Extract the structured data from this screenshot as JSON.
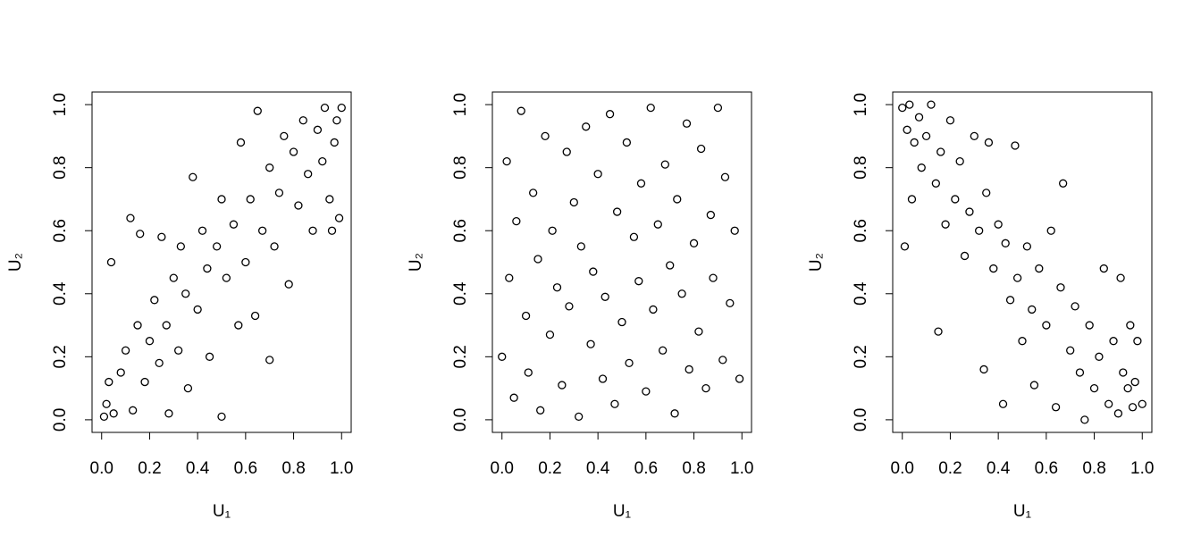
{
  "chart_data": [
    {
      "type": "scatter",
      "xlabel": "U₁",
      "ylabel": "U₂",
      "color": "#000000",
      "xlim": [
        -0.04,
        1.04
      ],
      "ylim": [
        -0.04,
        1.04
      ],
      "xticks": [
        {
          "value": 0,
          "label": "0.0"
        },
        {
          "value": 0.2,
          "label": "0.2"
        },
        {
          "value": 0.4,
          "label": "0.4"
        },
        {
          "value": 0.6,
          "label": "0.6"
        },
        {
          "value": 0.8,
          "label": "0.8"
        },
        {
          "value": 1,
          "label": "1.0"
        }
      ],
      "yticks": [
        {
          "value": 0,
          "label": "0.0"
        },
        {
          "value": 0.2,
          "label": "0.2"
        },
        {
          "value": 0.4,
          "label": "0.4"
        },
        {
          "value": 0.6,
          "label": "0.6"
        },
        {
          "value": 0.8,
          "label": "0.8"
        },
        {
          "value": 1,
          "label": "1.0"
        }
      ],
      "x": [
        0.01,
        0.02,
        0.03,
        0.05,
        0.04,
        0.08,
        0.1,
        0.12,
        0.13,
        0.15,
        0.16,
        0.18,
        0.2,
        0.22,
        0.24,
        0.25,
        0.27,
        0.28,
        0.3,
        0.32,
        0.33,
        0.35,
        0.36,
        0.38,
        0.4,
        0.42,
        0.44,
        0.45,
        0.48,
        0.5,
        0.5,
        0.52,
        0.55,
        0.57,
        0.58,
        0.6,
        0.62,
        0.64,
        0.65,
        0.67,
        0.7,
        0.7,
        0.72,
        0.74,
        0.76,
        0.78,
        0.8,
        0.82,
        0.84,
        0.86,
        0.88,
        0.9,
        0.92,
        0.93,
        0.95,
        0.96,
        0.97,
        0.98,
        0.99,
        1.0
      ],
      "y": [
        0.01,
        0.05,
        0.12,
        0.02,
        0.5,
        0.15,
        0.22,
        0.64,
        0.03,
        0.3,
        0.59,
        0.12,
        0.25,
        0.38,
        0.18,
        0.58,
        0.3,
        0.02,
        0.45,
        0.22,
        0.55,
        0.4,
        0.1,
        0.77,
        0.35,
        0.6,
        0.48,
        0.2,
        0.55,
        0.01,
        0.7,
        0.45,
        0.62,
        0.3,
        0.88,
        0.5,
        0.7,
        0.33,
        0.98,
        0.6,
        0.19,
        0.8,
        0.55,
        0.72,
        0.9,
        0.43,
        0.85,
        0.68,
        0.95,
        0.78,
        0.6,
        0.92,
        0.82,
        0.99,
        0.7,
        0.6,
        0.88,
        0.95,
        0.64,
        0.99
      ]
    },
    {
      "type": "scatter",
      "xlabel": "U₁",
      "ylabel": "U₂",
      "color": "#000000",
      "xlim": [
        -0.04,
        1.04
      ],
      "ylim": [
        -0.04,
        1.04
      ],
      "xticks": [
        {
          "value": 0,
          "label": "0.0"
        },
        {
          "value": 0.2,
          "label": "0.2"
        },
        {
          "value": 0.4,
          "label": "0.4"
        },
        {
          "value": 0.6,
          "label": "0.6"
        },
        {
          "value": 0.8,
          "label": "0.8"
        },
        {
          "value": 1,
          "label": "1.0"
        }
      ],
      "yticks": [
        {
          "value": 0,
          "label": "0.0"
        },
        {
          "value": 0.2,
          "label": "0.2"
        },
        {
          "value": 0.4,
          "label": "0.4"
        },
        {
          "value": 0.6,
          "label": "0.6"
        },
        {
          "value": 0.8,
          "label": "0.8"
        },
        {
          "value": 1,
          "label": "1.0"
        }
      ],
      "x": [
        0.0,
        0.02,
        0.03,
        0.05,
        0.06,
        0.08,
        0.1,
        0.11,
        0.13,
        0.15,
        0.16,
        0.18,
        0.2,
        0.21,
        0.23,
        0.25,
        0.27,
        0.28,
        0.3,
        0.32,
        0.33,
        0.35,
        0.37,
        0.38,
        0.4,
        0.42,
        0.43,
        0.45,
        0.47,
        0.48,
        0.5,
        0.52,
        0.53,
        0.55,
        0.57,
        0.58,
        0.6,
        0.62,
        0.63,
        0.65,
        0.67,
        0.68,
        0.7,
        0.72,
        0.73,
        0.75,
        0.77,
        0.78,
        0.8,
        0.82,
        0.83,
        0.85,
        0.87,
        0.88,
        0.9,
        0.92,
        0.93,
        0.95,
        0.97,
        0.99
      ],
      "y": [
        0.2,
        0.82,
        0.45,
        0.07,
        0.63,
        0.98,
        0.33,
        0.15,
        0.72,
        0.51,
        0.03,
        0.9,
        0.27,
        0.6,
        0.42,
        0.11,
        0.85,
        0.36,
        0.69,
        0.01,
        0.55,
        0.93,
        0.24,
        0.47,
        0.78,
        0.13,
        0.39,
        0.97,
        0.05,
        0.66,
        0.31,
        0.88,
        0.18,
        0.58,
        0.44,
        0.75,
        0.09,
        0.99,
        0.35,
        0.62,
        0.22,
        0.81,
        0.49,
        0.02,
        0.7,
        0.4,
        0.94,
        0.16,
        0.56,
        0.28,
        0.86,
        0.1,
        0.65,
        0.45,
        0.99,
        0.19,
        0.77,
        0.37,
        0.6,
        0.13
      ]
    },
    {
      "type": "scatter",
      "xlabel": "U₁",
      "ylabel": "U₂",
      "color": "#000000",
      "xlim": [
        -0.04,
        1.04
      ],
      "ylim": [
        -0.04,
        1.04
      ],
      "xticks": [
        {
          "value": 0,
          "label": "0.0"
        },
        {
          "value": 0.2,
          "label": "0.2"
        },
        {
          "value": 0.4,
          "label": "0.4"
        },
        {
          "value": 0.6,
          "label": "0.6"
        },
        {
          "value": 0.8,
          "label": "0.8"
        },
        {
          "value": 1,
          "label": "1.0"
        }
      ],
      "yticks": [
        {
          "value": 0,
          "label": "0.0"
        },
        {
          "value": 0.2,
          "label": "0.2"
        },
        {
          "value": 0.4,
          "label": "0.4"
        },
        {
          "value": 0.6,
          "label": "0.6"
        },
        {
          "value": 0.8,
          "label": "0.8"
        },
        {
          "value": 1,
          "label": "1.0"
        }
      ],
      "x": [
        0.0,
        0.01,
        0.02,
        0.03,
        0.04,
        0.05,
        0.07,
        0.08,
        0.1,
        0.12,
        0.14,
        0.15,
        0.16,
        0.18,
        0.2,
        0.22,
        0.24,
        0.26,
        0.28,
        0.3,
        0.32,
        0.34,
        0.35,
        0.36,
        0.38,
        0.4,
        0.42,
        0.43,
        0.45,
        0.47,
        0.48,
        0.5,
        0.52,
        0.54,
        0.55,
        0.57,
        0.6,
        0.62,
        0.64,
        0.66,
        0.67,
        0.7,
        0.72,
        0.74,
        0.76,
        0.78,
        0.8,
        0.82,
        0.84,
        0.86,
        0.88,
        0.9,
        0.91,
        0.92,
        0.94,
        0.95,
        0.96,
        0.97,
        0.98,
        1.0
      ],
      "y": [
        0.99,
        0.55,
        0.92,
        1.0,
        0.7,
        0.88,
        0.96,
        0.8,
        0.9,
        1.0,
        0.75,
        0.28,
        0.85,
        0.62,
        0.95,
        0.7,
        0.82,
        0.52,
        0.66,
        0.9,
        0.6,
        0.16,
        0.72,
        0.88,
        0.48,
        0.62,
        0.05,
        0.56,
        0.38,
        0.87,
        0.45,
        0.25,
        0.55,
        0.35,
        0.11,
        0.48,
        0.3,
        0.6,
        0.04,
        0.42,
        0.75,
        0.22,
        0.36,
        0.15,
        0.0,
        0.3,
        0.1,
        0.2,
        0.48,
        0.05,
        0.25,
        0.02,
        0.45,
        0.15,
        0.1,
        0.3,
        0.04,
        0.12,
        0.25,
        0.05
      ]
    }
  ]
}
